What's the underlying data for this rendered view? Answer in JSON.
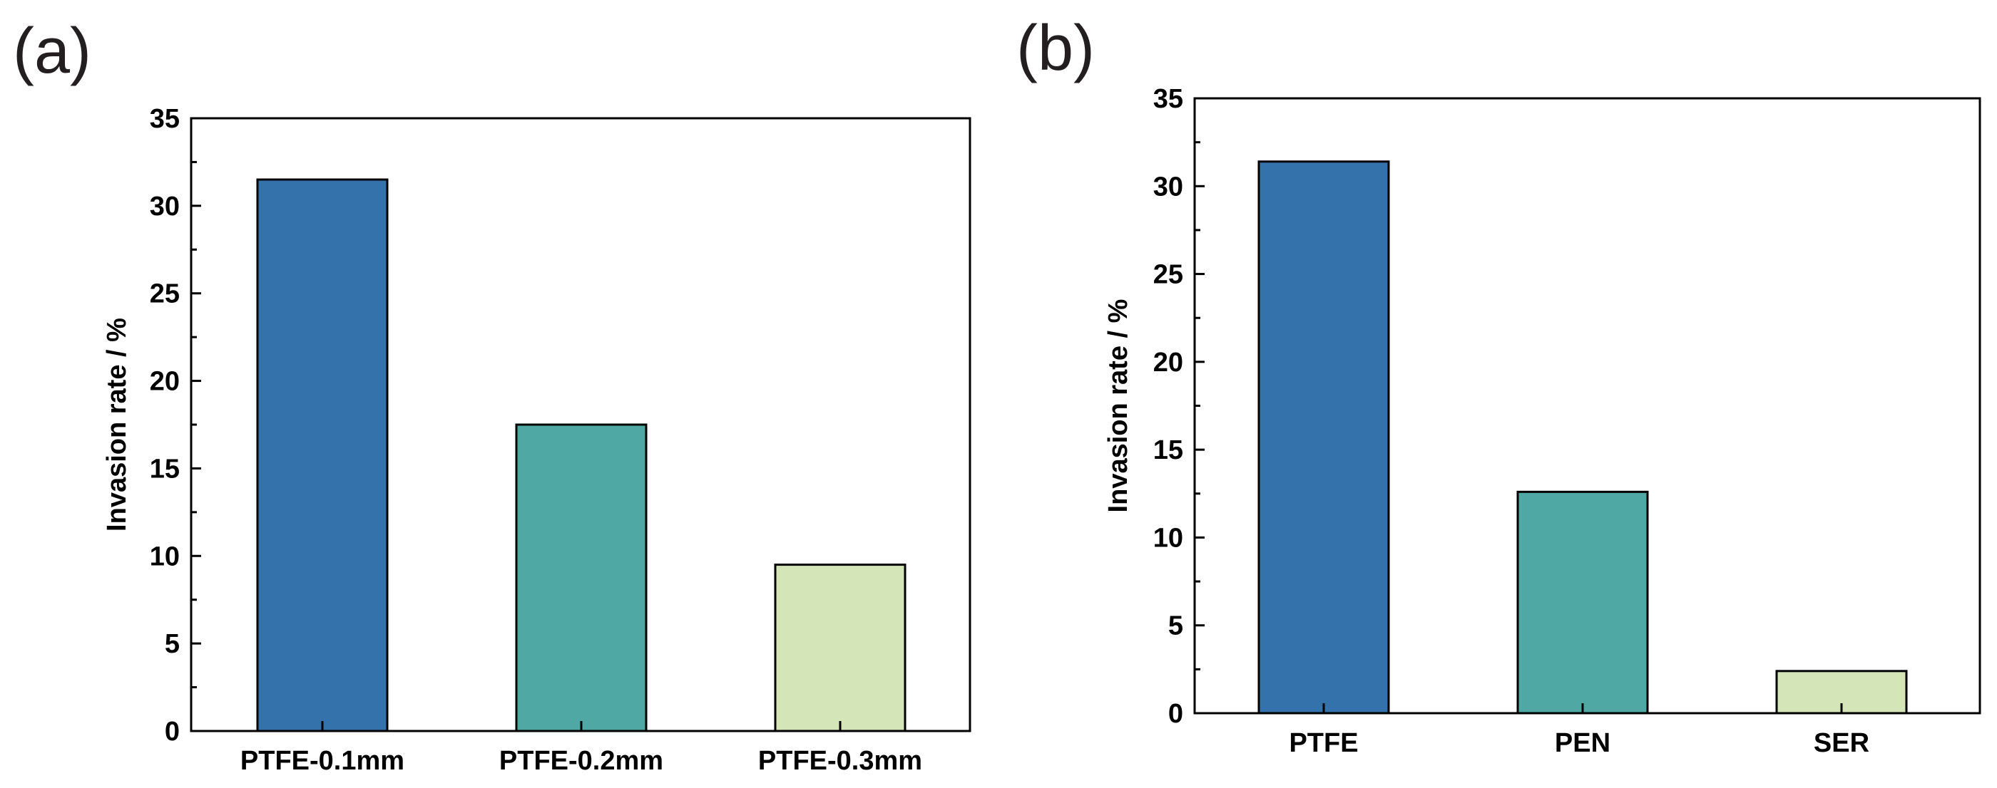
{
  "chart_data": [
    {
      "panel_label": "(a)",
      "type": "bar",
      "title": "",
      "xlabel": "",
      "ylabel": "Invasion rate / %",
      "ylim": [
        0,
        35
      ],
      "yticks": [
        0,
        5,
        10,
        15,
        20,
        25,
        30,
        35
      ],
      "categories": [
        "PTFE-0.1mm",
        "PTFE-0.2mm",
        "PTFE-0.3mm"
      ],
      "values": [
        31.5,
        17.5,
        9.5
      ],
      "colors": [
        "#3472ab",
        "#4fa8a3",
        "#d4e5b8"
      ],
      "grid": false,
      "legend": "none"
    },
    {
      "panel_label": "(b)",
      "type": "bar",
      "title": "",
      "xlabel": "",
      "ylabel": "Invasion rate / %",
      "ylim": [
        0,
        35
      ],
      "yticks": [
        0,
        5,
        10,
        15,
        20,
        25,
        30,
        35
      ],
      "categories": [
        "PTFE",
        "PEN",
        "SER"
      ],
      "values": [
        31.4,
        12.6,
        2.4
      ],
      "colors": [
        "#3472ab",
        "#4fa8a3",
        "#d4e5b8"
      ],
      "grid": false,
      "legend": "none"
    }
  ]
}
